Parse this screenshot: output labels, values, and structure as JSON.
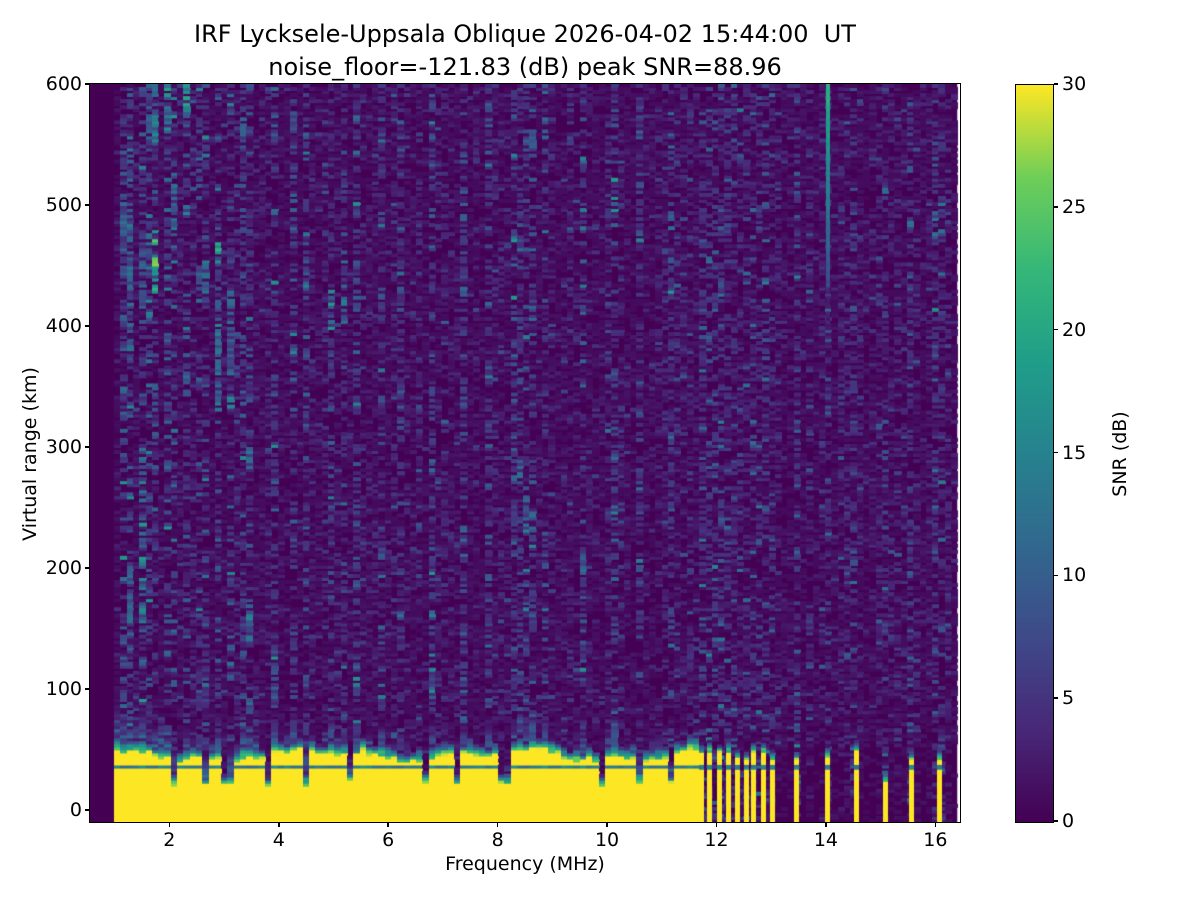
{
  "figure": {
    "title": "IRF Lycksele-Uppsala Oblique 2026-04-02 15:44:00  UT",
    "subtitle": "noise_floor=-121.83 (dB) peak SNR=88.96"
  },
  "chart_data": {
    "type": "heatmap",
    "title": "IRF Lycksele-Uppsala Oblique 2026-04-02 15:44:00  UT",
    "subtitle": "noise_floor=-121.83 (dB) peak SNR=88.96",
    "noise_floor_db": -121.83,
    "peak_snr_db": 88.96,
    "xlabel": "Frequency (MHz)",
    "ylabel": "Virtual range (km)",
    "colorbar_label": "SNR (dB)",
    "colormap": "viridis",
    "xlim": [
      0.55,
      16.45
    ],
    "ylim": [
      -10,
      600
    ],
    "clim": [
      0,
      30
    ],
    "xticks": [
      2,
      4,
      6,
      8,
      10,
      12,
      14,
      16
    ],
    "yticks": [
      0,
      100,
      200,
      300,
      400,
      500,
      600
    ],
    "colorbar_ticks": [
      0,
      5,
      10,
      15,
      20,
      25,
      30
    ],
    "grid": false,
    "features": {
      "sweep_start_mhz": 1.0,
      "data_end_mhz": 16.4,
      "band_end_mhz": 11.65,
      "band_yellow_top_km": 42,
      "band_teal_line_km": [
        33.5,
        36.2
      ],
      "band_fade_km": 10,
      "band_notches_mhz": [
        2.05,
        2.62,
        3.07,
        3.8,
        4.5,
        5.3,
        6.64,
        7.3,
        8.13,
        9.86,
        10.6,
        11.2
      ],
      "discrete_columns_mhz": [
        11.72,
        11.88,
        12.05,
        12.22,
        12.38,
        12.54,
        12.68,
        12.86,
        13.02,
        13.47,
        14.03,
        14.55,
        15.08,
        15.56,
        16.07
      ],
      "short_column_mhz": 15.08,
      "rfi_line": {
        "f_mhz": 14.03,
        "y_from_km": 430,
        "y_to_km": 600,
        "snr_bottom": 6,
        "snr_top": 21
      },
      "streaks": [
        {
          "f": 1.16,
          "segs": [
            [
              440,
              530,
              10
            ],
            [
              90,
              140,
              9
            ]
          ]
        },
        {
          "f": 1.32,
          "segs": [
            [
              370,
              520,
              12
            ],
            [
              130,
              200,
              11
            ]
          ]
        },
        {
          "f": 1.5,
          "segs": [
            [
              155,
              235,
              18
            ],
            [
              420,
              465,
              11
            ],
            [
              260,
              300,
              13
            ]
          ]
        },
        {
          "f": 1.63,
          "segs": [
            [
              440,
              475,
              12
            ],
            [
              545,
              580,
              10
            ]
          ]
        },
        {
          "f": 1.78,
          "segs": [
            [
              425,
              478,
              24
            ],
            [
              548,
              600,
              15
            ],
            [
              300,
              350,
              9
            ]
          ]
        },
        {
          "f": 1.95,
          "segs": [
            [
              555,
              600,
              17
            ],
            [
              360,
              395,
              9
            ]
          ]
        },
        {
          "f": 2.12,
          "segs": [
            [
              480,
              515,
              12
            ]
          ]
        },
        {
          "f": 2.3,
          "segs": [
            [
              565,
              600,
              19
            ],
            [
              340,
              360,
              10
            ]
          ]
        },
        {
          "f": 2.62,
          "segs": [
            [
              420,
              450,
              11
            ],
            [
              90,
              115,
              8
            ]
          ]
        },
        {
          "f": 2.9,
          "segs": [
            [
              330,
              420,
              15
            ],
            [
              452,
              468,
              19
            ]
          ]
        },
        {
          "f": 3.1,
          "segs": [
            [
              332,
              344,
              22
            ],
            [
              360,
              430,
              11
            ]
          ]
        },
        {
          "f": 3.32,
          "segs": [
            [
              545,
              572,
              10
            ]
          ]
        },
        {
          "f": 3.5,
          "segs": [
            [
              278,
              300,
              17
            ],
            [
              140,
              168,
              14
            ]
          ]
        },
        {
          "f": 3.95,
          "segs": [
            [
              95,
              118,
              9
            ]
          ]
        },
        {
          "f": 4.28,
          "segs": [
            [
              555,
              580,
              9
            ]
          ]
        },
        {
          "f": 4.5,
          "segs": [
            [
              428,
              448,
              13
            ],
            [
              90,
              110,
              8
            ]
          ]
        },
        {
          "f": 4.95,
          "segs": [
            [
              396,
              436,
              17
            ]
          ]
        },
        {
          "f": 5.18,
          "segs": [
            [
              402,
              424,
              15
            ],
            [
              432,
              444,
              10
            ]
          ]
        },
        {
          "f": 5.42,
          "segs": [
            [
              406,
              418,
              13
            ]
          ]
        },
        {
          "f": 5.9,
          "segs": [
            [
              205,
              230,
              8
            ]
          ]
        },
        {
          "f": 6.25,
          "segs": [
            [
              338,
              352,
              8
            ],
            [
              543,
              558,
              8
            ]
          ]
        },
        {
          "f": 6.85,
          "segs": [
            [
              95,
              112,
              7
            ]
          ]
        },
        {
          "f": 7.35,
          "segs": [
            [
              328,
              342,
              11
            ]
          ]
        },
        {
          "f": 7.8,
          "segs": [
            [
              560,
              585,
              8
            ]
          ]
        },
        {
          "f": 8.35,
          "segs": [
            [
              268,
              288,
              11
            ]
          ]
        },
        {
          "f": 8.6,
          "segs": [
            [
              228,
              262,
              13
            ],
            [
              543,
              560,
              10
            ]
          ]
        },
        {
          "f": 8.9,
          "segs": [
            [
              553,
              572,
              11
            ]
          ]
        },
        {
          "f": 9.55,
          "segs": [
            [
              193,
              212,
              11
            ]
          ]
        },
        {
          "f": 10.08,
          "segs": [
            [
              238,
              252,
              8
            ]
          ]
        },
        {
          "f": 10.6,
          "segs": [
            [
              322,
              336,
              9
            ]
          ]
        },
        {
          "f": 11.2,
          "segs": [
            [
              150,
              165,
              8
            ]
          ]
        }
      ]
    }
  },
  "style": {
    "background": "#ffffff",
    "spine_color": "#000000",
    "text_color": "#000000",
    "viridis_stops": [
      "#440154",
      "#482878",
      "#3e4a89",
      "#31688e",
      "#26828e",
      "#1f9e89",
      "#35b779",
      "#6ece58",
      "#fde725"
    ]
  }
}
